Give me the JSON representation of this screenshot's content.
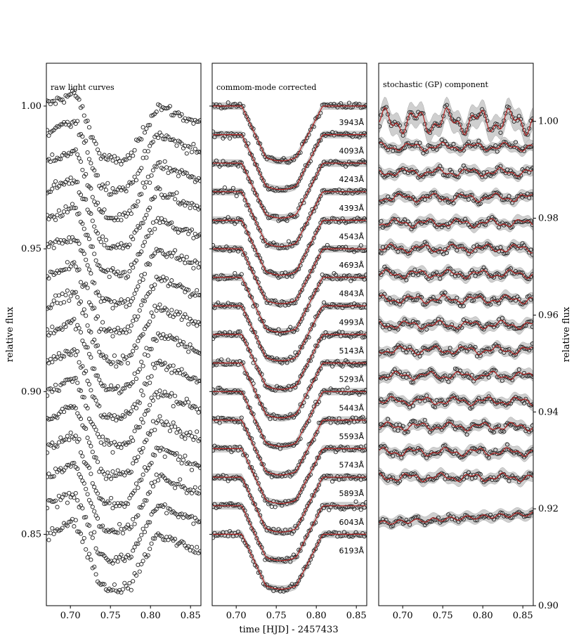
{
  "chart_data": [
    {
      "type": "scatter",
      "title": "raw light curves",
      "ylabel": "relative flux",
      "xlim": [
        0.67,
        0.863
      ],
      "ylim": [
        0.825,
        1.015
      ],
      "xticks": [
        "0.70",
        "0.75",
        "0.80",
        "0.85"
      ],
      "yticks": [
        "0.85",
        "0.90",
        "0.95",
        "1.00"
      ],
      "n_curves": 16,
      "first_baseline": 1.0,
      "baseline_step": 0.01,
      "transit": {
        "ingress_start": 0.707,
        "ingress_end": 0.737,
        "egress_start": 0.775,
        "egress_end": 0.808,
        "depth": 0.018
      },
      "raw_trend": {
        "mid_bump": 0.004,
        "post_transit_drop": 0.006
      },
      "marker": "open circle"
    },
    {
      "type": "scatter",
      "title": "commom-mode corrected",
      "xlim": [
        0.67,
        0.863
      ],
      "ylim": [
        0.825,
        1.015
      ],
      "xticks": [
        "0.70",
        "0.75",
        "0.80",
        "0.85"
      ],
      "wavelength_labels": [
        "3943Å",
        "4093Å",
        "4243Å",
        "4393Å",
        "4543Å",
        "4693Å",
        "4843Å",
        "4993Å",
        "5143Å",
        "5293Å",
        "5443Å",
        "5593Å",
        "5743Å",
        "5893Å",
        "6043Å",
        "6193Å"
      ],
      "model_color": "#b22222",
      "band_color": "#d3d3d3",
      "marker": "open circle"
    },
    {
      "type": "scatter",
      "title": "stochastic (GP) component",
      "ylabel": "relative flux",
      "xlim": [
        0.67,
        0.863
      ],
      "ylim": [
        0.9,
        1.012
      ],
      "xticks": [
        "0.70",
        "0.75",
        "0.80",
        "0.85"
      ],
      "yticks": [
        "0.90",
        "0.92",
        "0.94",
        "0.96",
        "0.98",
        "1.00"
      ],
      "first_baseline": 1.0,
      "baseline_step": 0.00525,
      "model_color": "#b22222",
      "band_color": "#d3d3d3",
      "marker": "open circle"
    }
  ],
  "xlabel": "time [HJD] - 2457433",
  "colors": {
    "points": "#222222",
    "model": "#b22222",
    "band": "#cfcfcf"
  }
}
